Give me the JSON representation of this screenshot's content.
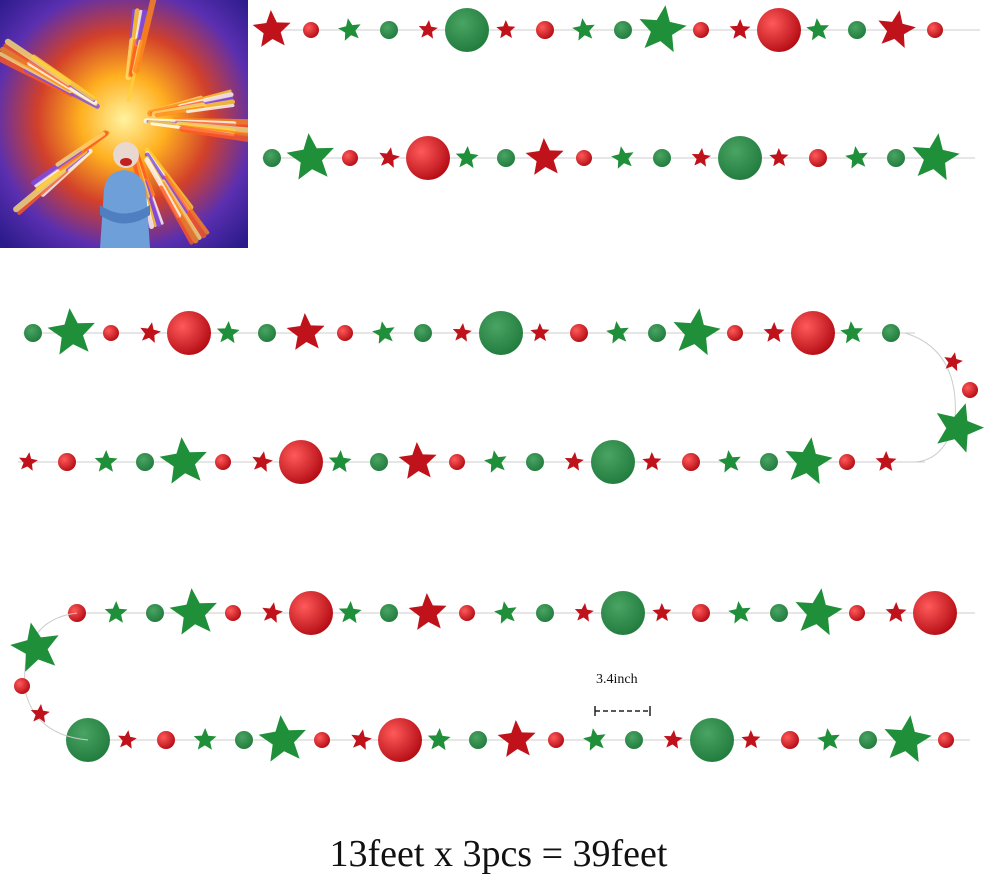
{
  "dimension": {
    "label": "3.4inch"
  },
  "caption": "13feet x 3pcs = 39feet"
}
